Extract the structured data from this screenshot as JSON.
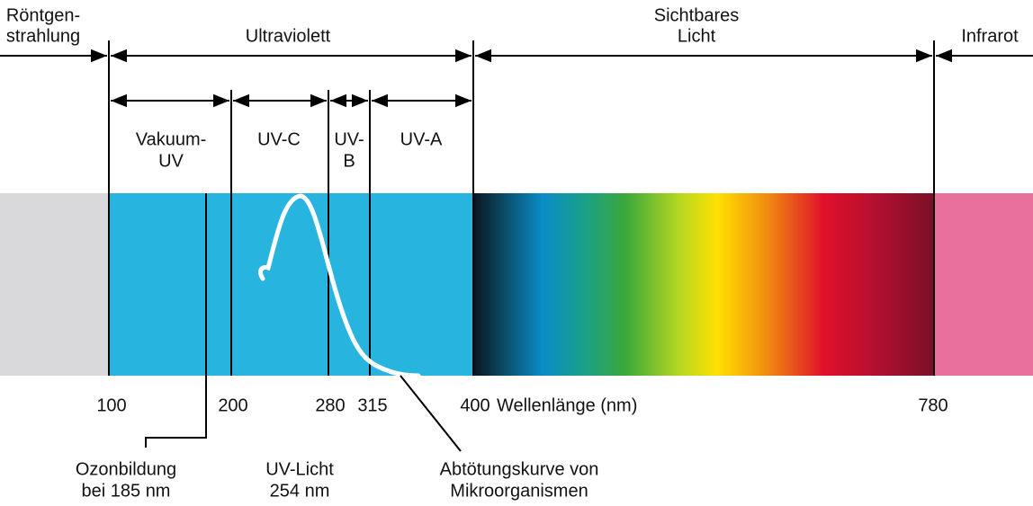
{
  "regions": {
    "xray": {
      "lines": [
        "Röntgen-",
        "strahlung"
      ]
    },
    "uv": {
      "lines": [
        "Ultraviolett"
      ]
    },
    "visible": {
      "lines": [
        "Sichtbares",
        "Licht"
      ]
    },
    "infrared": {
      "lines": [
        "Infrarot"
      ]
    }
  },
  "uv_bands": [
    {
      "lines": [
        "Vakuum-",
        "UV"
      ]
    },
    {
      "lines": [
        "UV-C"
      ]
    },
    {
      "lines": [
        "UV-",
        "B"
      ]
    },
    {
      "lines": [
        "UV-A"
      ]
    }
  ],
  "axis": {
    "ticks": [
      "100",
      "200",
      "280",
      "315",
      "400",
      "780"
    ],
    "label": "Wellenlänge (nm)"
  },
  "annotations": [
    {
      "lines": [
        "Ozonbildung",
        "bei 185 nm"
      ]
    },
    {
      "lines": [
        "UV-Licht",
        "254 nm"
      ]
    },
    {
      "lines": [
        "Abtötungskurve von",
        "Mikroorganismen"
      ]
    }
  ]
}
